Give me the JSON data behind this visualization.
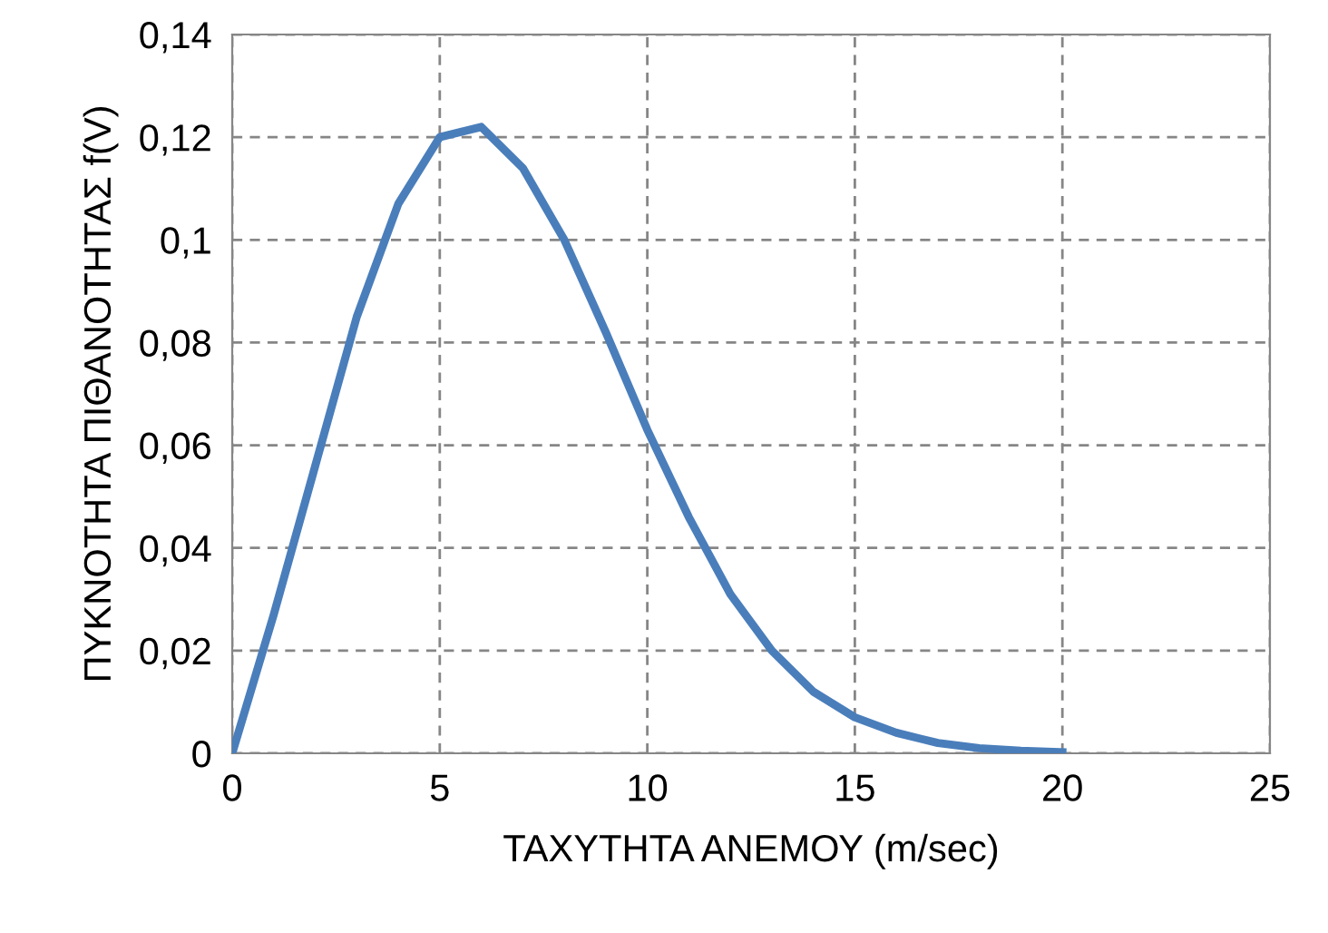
{
  "chart_data": {
    "type": "line",
    "xlabel": "ΤΑΧΥΤΗΤΑ ΑΝΕΜΟΥ (m/sec)",
    "ylabel": "ΠΥΚΝΟΤΗΤΑ ΠΙΘΑΝΟΤΗΤΑΣ f(V)",
    "series": [
      {
        "color": "#4a7ebb",
        "x": [
          0,
          1,
          2,
          3,
          4,
          5,
          6,
          7,
          8,
          9,
          10,
          11,
          12,
          13,
          14,
          15,
          16,
          17,
          18,
          19,
          20
        ],
        "values": [
          0,
          0.027,
          0.056,
          0.085,
          0.107,
          0.12,
          0.122,
          0.114,
          0.1,
          0.082,
          0.063,
          0.046,
          0.031,
          0.02,
          0.012,
          0.007,
          0.004,
          0.002,
          0.001,
          0.0005,
          0.0002
        ]
      }
    ],
    "xlim": [
      0,
      25
    ],
    "xticks": [
      0,
      5,
      10,
      15,
      20,
      25
    ],
    "ylim": [
      0,
      0.14
    ],
    "yticks": [
      0,
      {
        "value": 0.02,
        "label": "0,02"
      },
      {
        "value": 0.04,
        "label": "0,04"
      },
      {
        "value": 0.06,
        "label": "0,06"
      },
      {
        "value": 0.08,
        "label": "0,08"
      },
      {
        "value": 0.1,
        "label": "0,1"
      },
      {
        "value": 0.12,
        "label": "0,12"
      },
      {
        "value": 0.14,
        "label": "0,14"
      }
    ],
    "grid": true,
    "marker": "none",
    "line_style": "solid",
    "legend": false
  }
}
